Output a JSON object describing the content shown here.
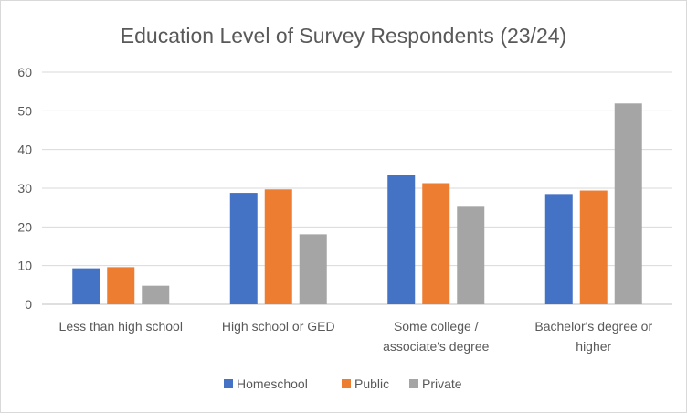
{
  "chart_data": {
    "type": "bar",
    "title": "Education Level of Survey Respondents (23/24)",
    "xlabel": "",
    "ylabel": "",
    "ylim": [
      0,
      60
    ],
    "yticks": [
      0,
      10,
      20,
      30,
      40,
      50,
      60
    ],
    "grid": true,
    "legend_position": "bottom",
    "categories": [
      [
        "Less than high school"
      ],
      [
        "High school or GED"
      ],
      [
        "Some college /",
        "associate's degree"
      ],
      [
        "Bachelor's degree or",
        "higher"
      ]
    ],
    "series": [
      {
        "name": "Homeschool",
        "color": "#4472C4",
        "values": [
          9.3,
          28.8,
          33.5,
          28.5
        ]
      },
      {
        "name": "Public",
        "color": "#ED7D31",
        "values": [
          9.6,
          29.7,
          31.3,
          29.4
        ]
      },
      {
        "name": "Private",
        "color": "#A5A5A5",
        "values": [
          4.8,
          18.1,
          25.2,
          51.9
        ]
      }
    ]
  }
}
